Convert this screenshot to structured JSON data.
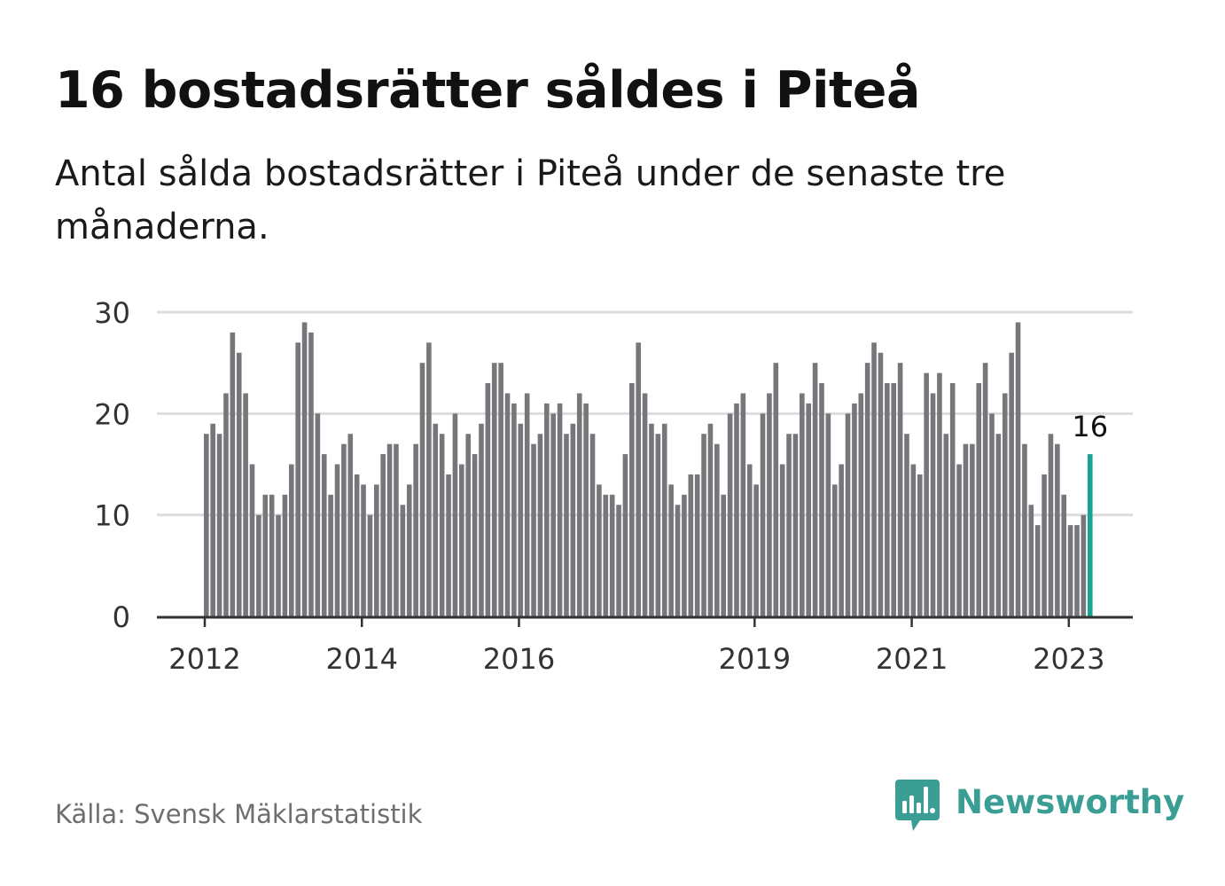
{
  "title": "16 bostadsrätter såldes i Piteå",
  "subtitle": "Antal sålda bostadsrätter i Piteå under de senaste tre månaderna.",
  "source": "Källa: Svensk Mäklarstatistik",
  "brand": {
    "name": "Newsworthy",
    "icon": "newsworthy-logo-icon"
  },
  "colors": {
    "bar": "#77767b",
    "highlight": "#1aa394",
    "grid": "#dddddd",
    "axis": "#333333",
    "brand": "#3a9e94"
  },
  "chart_data": {
    "type": "bar",
    "title": "",
    "xlabel": "",
    "ylabel": "",
    "ylim": [
      0,
      30
    ],
    "yticks": [
      0,
      10,
      20,
      30
    ],
    "x_tick_labels": [
      "2012",
      "2014",
      "2016",
      "2019",
      "2021",
      "2023"
    ],
    "grid": true,
    "start_month": "2012-01",
    "end_month": "2023-04",
    "highlight_last": true,
    "last_value_label": "16",
    "series": [
      {
        "values": [
          18,
          19,
          18,
          22,
          28,
          26,
          22,
          15,
          10,
          12,
          12,
          10,
          12,
          15,
          27,
          29,
          28,
          20,
          16,
          12,
          15,
          17,
          18,
          14,
          13,
          10,
          13,
          16,
          17,
          17,
          11,
          13,
          17,
          25,
          27,
          19,
          18,
          14,
          20,
          15,
          18,
          16,
          19,
          23,
          25,
          25,
          22,
          21,
          19,
          22,
          17,
          18,
          21,
          20,
          21,
          18,
          19,
          22,
          21,
          18,
          13,
          12,
          12,
          11,
          16,
          23,
          27,
          22,
          19,
          18,
          19,
          13,
          11,
          12,
          14,
          14,
          18,
          19,
          17,
          12,
          20,
          21,
          22,
          15,
          13,
          20,
          22,
          25,
          15,
          18,
          18,
          22,
          21,
          25,
          23,
          20,
          13,
          15,
          20,
          21,
          22,
          25,
          27,
          26,
          23,
          23,
          25,
          18,
          15,
          14,
          24,
          22,
          24,
          18,
          23,
          15,
          17,
          17,
          23,
          25,
          20,
          18,
          22,
          26,
          29,
          17,
          11,
          9,
          14,
          18,
          17,
          12,
          9,
          9,
          10,
          16
        ]
      }
    ]
  }
}
